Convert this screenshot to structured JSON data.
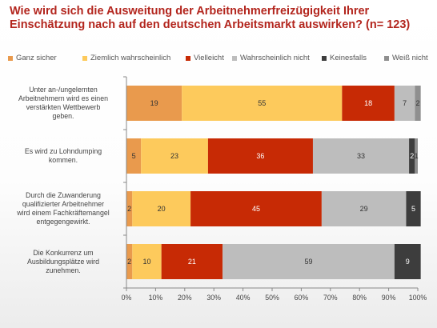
{
  "title_lines": [
    "Wie wird sich die Ausweitung der Arbeitnehmerfreizügigkeit Ihrer",
    "Einschätzung nach auf den deutschen Arbeitsmarkt auswirken? (n= 123)"
  ],
  "colors": {
    "title": "#b3261e",
    "series": [
      "#e99a4d",
      "#fdca5c",
      "#c72a05",
      "#bdbdbd",
      "#3d3d3d",
      "#8f8f8f"
    ]
  },
  "chart_data": {
    "type": "bar",
    "orientation": "horizontal",
    "stacked": true,
    "percent": true,
    "categories": [
      [
        "Unter an-/ungelernten",
        "Arbeitnehmern wird es einen",
        "verstärkten Wettbewerb",
        "geben."
      ],
      [
        "Es wird zu Lohndumping",
        "kommen."
      ],
      [
        "Durch die Zuwanderung",
        "qualifizierter Arbeitnehmer",
        "wird einem Fachkräftemangel",
        "entgegengewirkt."
      ],
      [
        "Die Konkurrenz um",
        "Ausbildungsplätze wird",
        "zunehmen."
      ]
    ],
    "series": [
      {
        "name": "Ganz sicher",
        "values": [
          19,
          5,
          2,
          2
        ]
      },
      {
        "name": "Ziemlich wahrscheinlich",
        "values": [
          55,
          23,
          20,
          10
        ]
      },
      {
        "name": "Vielleicht",
        "values": [
          18,
          36,
          45,
          21
        ]
      },
      {
        "name": "Wahrscheinlich nicht",
        "values": [
          7,
          33,
          29,
          59
        ]
      },
      {
        "name": "Keinesfalls",
        "values": [
          0,
          2,
          5,
          9
        ]
      },
      {
        "name": "Weiß nicht",
        "values": [
          2,
          1,
          0,
          0
        ]
      }
    ],
    "bar_labels": [
      [
        "19",
        "55",
        "18",
        "7",
        "",
        "2"
      ],
      [
        "5",
        "23",
        "36",
        "33",
        "2",
        "1"
      ],
      [
        "2",
        "20",
        "45",
        "29",
        "5",
        ""
      ],
      [
        "2",
        "10",
        "21",
        "59",
        "9",
        ""
      ]
    ],
    "xlim": [
      0,
      100
    ],
    "xticks": [
      "0%",
      "10%",
      "20%",
      "30%",
      "40%",
      "50%",
      "60%",
      "70%",
      "80%",
      "90%",
      "100%"
    ],
    "grid": false,
    "legend_position": "top"
  }
}
